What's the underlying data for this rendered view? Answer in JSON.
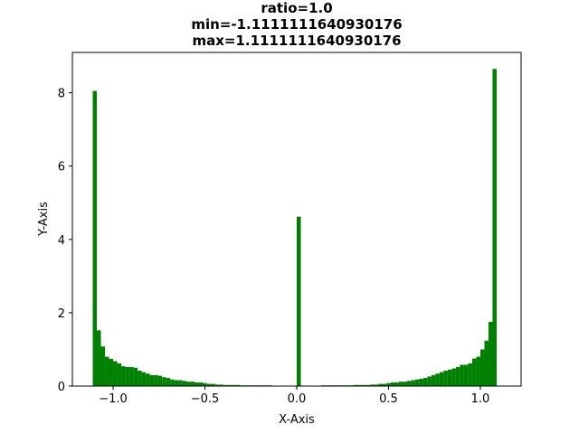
{
  "chart_data": {
    "type": "bar",
    "title_lines": [
      "ratio=1.0",
      "min=-1.1111111640930176",
      "max=1.1111111640930176"
    ],
    "xlabel": "X-Axis",
    "ylabel": "Y-Axis",
    "xlim": [
      -1.222,
      1.222
    ],
    "ylim": [
      0,
      9.1
    ],
    "xticks": [
      -1.0,
      -0.5,
      0.0,
      0.5,
      1.0
    ],
    "xtick_labels": [
      "−1.0",
      "−0.5",
      "0.0",
      "0.5",
      "1.0"
    ],
    "yticks": [
      0,
      2,
      4,
      6,
      8
    ],
    "ytick_labels": [
      "0",
      "2",
      "4",
      "6",
      "8"
    ],
    "bar_color": "#008000",
    "bin_range": [
      -1.1111111640930176,
      1.1111111640930176
    ],
    "bin_count": 100,
    "values": [
      8.05,
      1.52,
      1.08,
      0.8,
      0.74,
      0.68,
      0.62,
      0.54,
      0.52,
      0.52,
      0.5,
      0.42,
      0.38,
      0.34,
      0.3,
      0.3,
      0.28,
      0.24,
      0.22,
      0.18,
      0.16,
      0.16,
      0.14,
      0.12,
      0.12,
      0.1,
      0.1,
      0.08,
      0.06,
      0.06,
      0.04,
      0.04,
      0.03,
      0.03,
      0.03,
      0.03,
      0.02,
      0.02,
      0.02,
      0.02,
      0.02,
      0.02,
      0.02,
      0.02,
      0.01,
      0.01,
      0.01,
      0.01,
      0.01,
      0.01,
      4.62,
      0.01,
      0.01,
      0.01,
      0.01,
      0.01,
      0.02,
      0.02,
      0.02,
      0.02,
      0.02,
      0.02,
      0.02,
      0.02,
      0.03,
      0.03,
      0.03,
      0.03,
      0.04,
      0.04,
      0.06,
      0.06,
      0.08,
      0.1,
      0.1,
      0.12,
      0.12,
      0.14,
      0.16,
      0.18,
      0.2,
      0.22,
      0.26,
      0.3,
      0.34,
      0.38,
      0.42,
      0.45,
      0.48,
      0.52,
      0.58,
      0.58,
      0.62,
      0.75,
      0.8,
      1.0,
      1.24,
      1.75,
      8.65,
      0.0
    ]
  }
}
